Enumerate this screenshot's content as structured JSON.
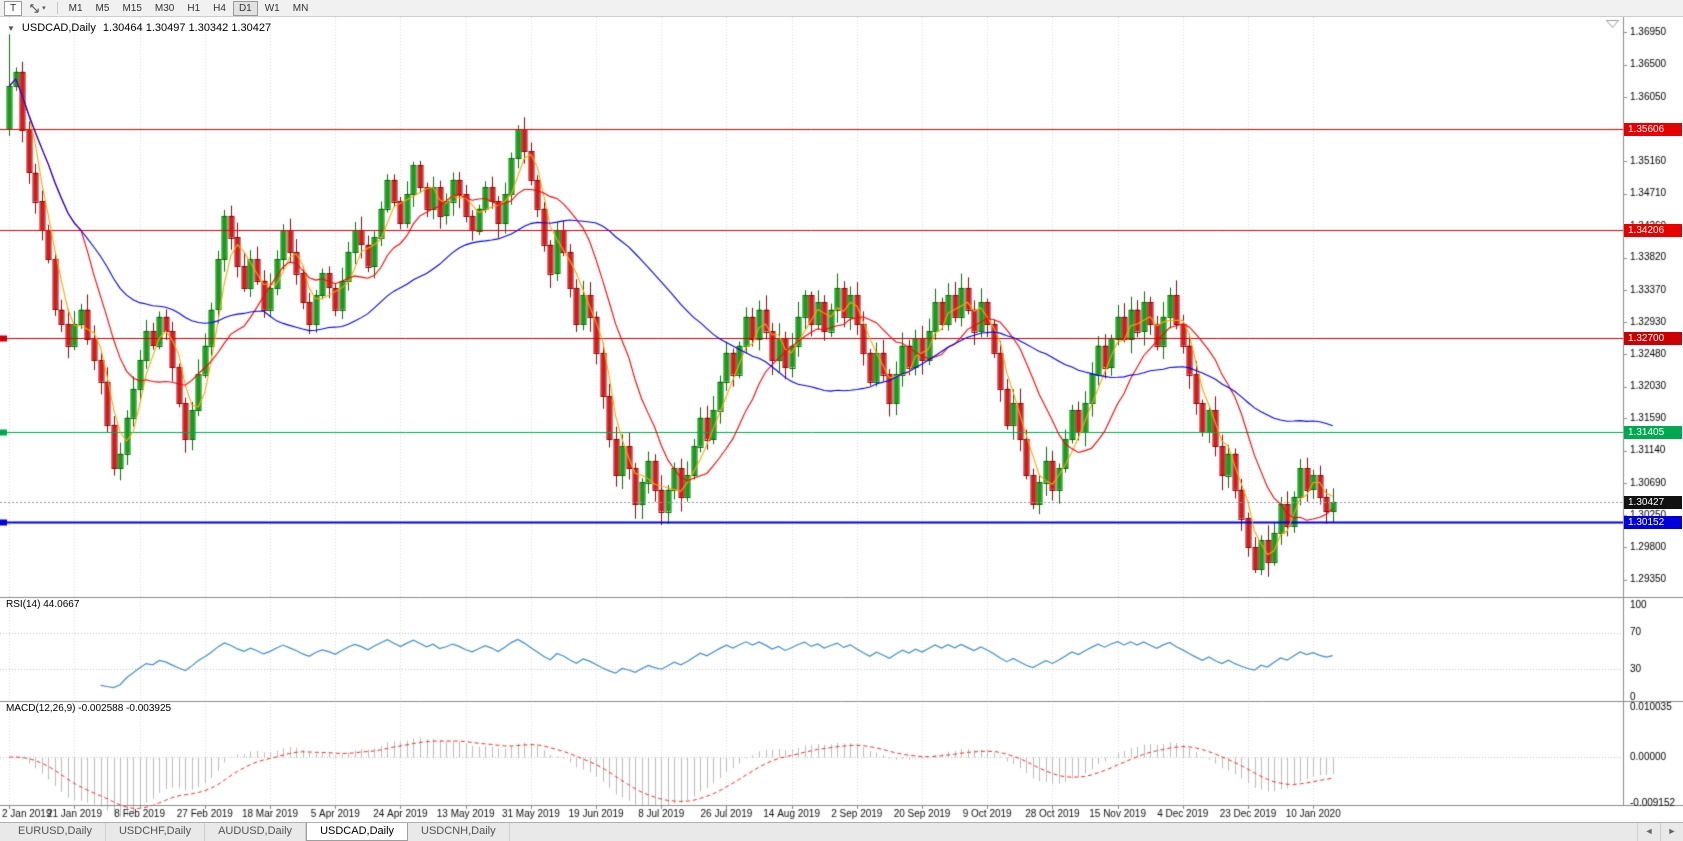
{
  "toolbar": {
    "text_tool_label": "T",
    "dropdown_icon": "▾",
    "timeframes": [
      "M1",
      "M5",
      "M15",
      "M30",
      "H1",
      "H4",
      "D1",
      "W1",
      "MN"
    ],
    "active_timeframe": "D1"
  },
  "ui": {
    "collapse_icon": "▼"
  },
  "tabs": {
    "items": [
      {
        "label": "EURUSD,Daily"
      },
      {
        "label": "USDCHF,Daily"
      },
      {
        "label": "AUDUSD,Daily"
      },
      {
        "label": "USDCAD,Daily"
      },
      {
        "label": "USDCNH,Daily"
      }
    ],
    "active": "USDCAD,Daily",
    "scroll_left_icon": "◄",
    "scroll_right_icon": "►"
  },
  "chart_data": {
    "type": "candlestick",
    "title": "USDCAD,Daily",
    "symbol": "USDCAD",
    "timeframe": "Daily",
    "ohlc_text": "1.30464 1.30497 1.30342 1.30427",
    "ohlc": {
      "open": 1.30464,
      "high": 1.30497,
      "low": 1.30342,
      "close": 1.30427
    },
    "ylim": [
      1.2911,
      1.3716
    ],
    "price_axis_labels": [
      "1.36950",
      "1.36500",
      "1.36050",
      "1.35610",
      "1.35160",
      "1.34710",
      "1.34260",
      "1.33820",
      "1.33370",
      "1.32930",
      "1.32480",
      "1.32030",
      "1.31590",
      "1.31140",
      "1.30690",
      "1.30250",
      "1.29800",
      "1.29350"
    ],
    "date_labels": [
      "2 Jan 2019",
      "21 Jan 2019",
      "8 Feb 2019",
      "27 Feb 2019",
      "18 Mar 2019",
      "5 Apr 2019",
      "24 Apr 2019",
      "13 May 2019",
      "31 May 2019",
      "19 Jun 2019",
      "8 Jul 2019",
      "26 Jul 2019",
      "14 Aug 2019",
      "2 Sep 2019",
      "20 Sep 2019",
      "9 Oct 2019",
      "28 Oct 2019",
      "15 Nov 2019",
      "4 Dec 2019",
      "23 Dec 2019",
      "10 Jan 2020"
    ],
    "up_color": "#10a310",
    "down_color": "#e31414",
    "closes": [
      1.362,
      1.364,
      1.356,
      1.35,
      1.346,
      1.342,
      1.338,
      1.331,
      1.329,
      1.326,
      1.329,
      1.331,
      1.327,
      1.324,
      1.321,
      1.315,
      1.309,
      1.311,
      1.316,
      1.32,
      1.324,
      1.328,
      1.326,
      1.33,
      1.328,
      1.323,
      1.318,
      1.313,
      1.317,
      1.322,
      1.326,
      1.331,
      1.338,
      1.344,
      1.341,
      1.337,
      1.334,
      1.338,
      1.335,
      1.331,
      1.334,
      1.338,
      1.342,
      1.339,
      1.336,
      1.332,
      1.329,
      1.333,
      1.336,
      1.334,
      1.331,
      1.335,
      1.339,
      1.342,
      1.34,
      1.337,
      1.341,
      1.345,
      1.349,
      1.346,
      1.343,
      1.347,
      1.351,
      1.348,
      1.345,
      1.348,
      1.344,
      1.346,
      1.349,
      1.347,
      1.344,
      1.342,
      1.345,
      1.348,
      1.346,
      1.343,
      1.347,
      1.352,
      1.356,
      1.353,
      1.349,
      1.345,
      1.34,
      1.336,
      1.342,
      1.339,
      1.334,
      1.329,
      1.333,
      1.33,
      1.325,
      1.319,
      1.313,
      1.308,
      1.312,
      1.309,
      1.304,
      1.307,
      1.31,
      1.306,
      1.303,
      1.306,
      1.309,
      1.305,
      1.308,
      1.312,
      1.316,
      1.313,
      1.317,
      1.321,
      1.325,
      1.322,
      1.326,
      1.33,
      1.327,
      1.331,
      1.328,
      1.324,
      1.327,
      1.323,
      1.326,
      1.33,
      1.333,
      1.329,
      1.332,
      1.328,
      1.331,
      1.334,
      1.33,
      1.333,
      1.329,
      1.325,
      1.321,
      1.325,
      1.322,
      1.318,
      1.322,
      1.326,
      1.323,
      1.327,
      1.324,
      1.328,
      1.332,
      1.329,
      1.333,
      1.33,
      1.334,
      1.331,
      1.328,
      1.332,
      1.329,
      1.325,
      1.32,
      1.315,
      1.318,
      1.313,
      1.308,
      1.304,
      1.307,
      1.31,
      1.306,
      1.309,
      1.313,
      1.317,
      1.314,
      1.318,
      1.322,
      1.326,
      1.323,
      1.327,
      1.33,
      1.327,
      1.331,
      1.328,
      1.332,
      1.329,
      1.326,
      1.33,
      1.333,
      1.329,
      1.326,
      1.322,
      1.318,
      1.314,
      1.317,
      1.312,
      1.308,
      1.311,
      1.306,
      1.302,
      1.298,
      1.295,
      1.299,
      1.296,
      1.3,
      1.304,
      1.301,
      1.305,
      1.309,
      1.306,
      1.308,
      1.305,
      1.303,
      1.3043
    ],
    "horizontal_lines": [
      {
        "value": 1.35606,
        "label": "1.35606",
        "color": "#e60000",
        "width": 1,
        "left_mark": false
      },
      {
        "value": 1.34206,
        "label": "1.34206",
        "color": "#e60000",
        "width": 1,
        "left_mark": false
      },
      {
        "value": 1.327,
        "label": "1.32700",
        "color": "#cc0000",
        "width": 1,
        "left_mark": true
      },
      {
        "value": 1.31405,
        "label": "1.31405",
        "color": "#00a94f",
        "width": 1,
        "left_mark": true
      },
      {
        "value": 1.30152,
        "label": "1.30152",
        "color": "#0000dd",
        "width": 2,
        "left_mark": true
      }
    ],
    "current_price": 1.30427,
    "current_price_label": "1.30427",
    "current_price_tag_color": "#111111",
    "moving_averages": [
      {
        "period": 4,
        "color": "#ffa500"
      },
      {
        "period": 12,
        "color": "#ff0000"
      },
      {
        "period": 40,
        "color": "#0000ff"
      }
    ],
    "rsi": {
      "label": "RSI(14)",
      "value_text": "44.0667",
      "value": 44.0667,
      "period": 14,
      "levels": [
        100,
        70,
        30,
        0
      ],
      "line_color": "#3f8fd2"
    },
    "macd": {
      "label": "MACD(12,26,9)",
      "value_text": "-0.002588 -0.003925",
      "macd_value": -0.002588,
      "signal_value": -0.003925,
      "params": [
        12,
        26,
        9
      ],
      "ylim": [
        -0.009152,
        0.010035
      ],
      "axis_labels": [
        "0.010035",
        "0.00000",
        "-0.009152"
      ],
      "hist_color": "#bdbdbd",
      "signal_color": "#ff2a2a"
    }
  }
}
